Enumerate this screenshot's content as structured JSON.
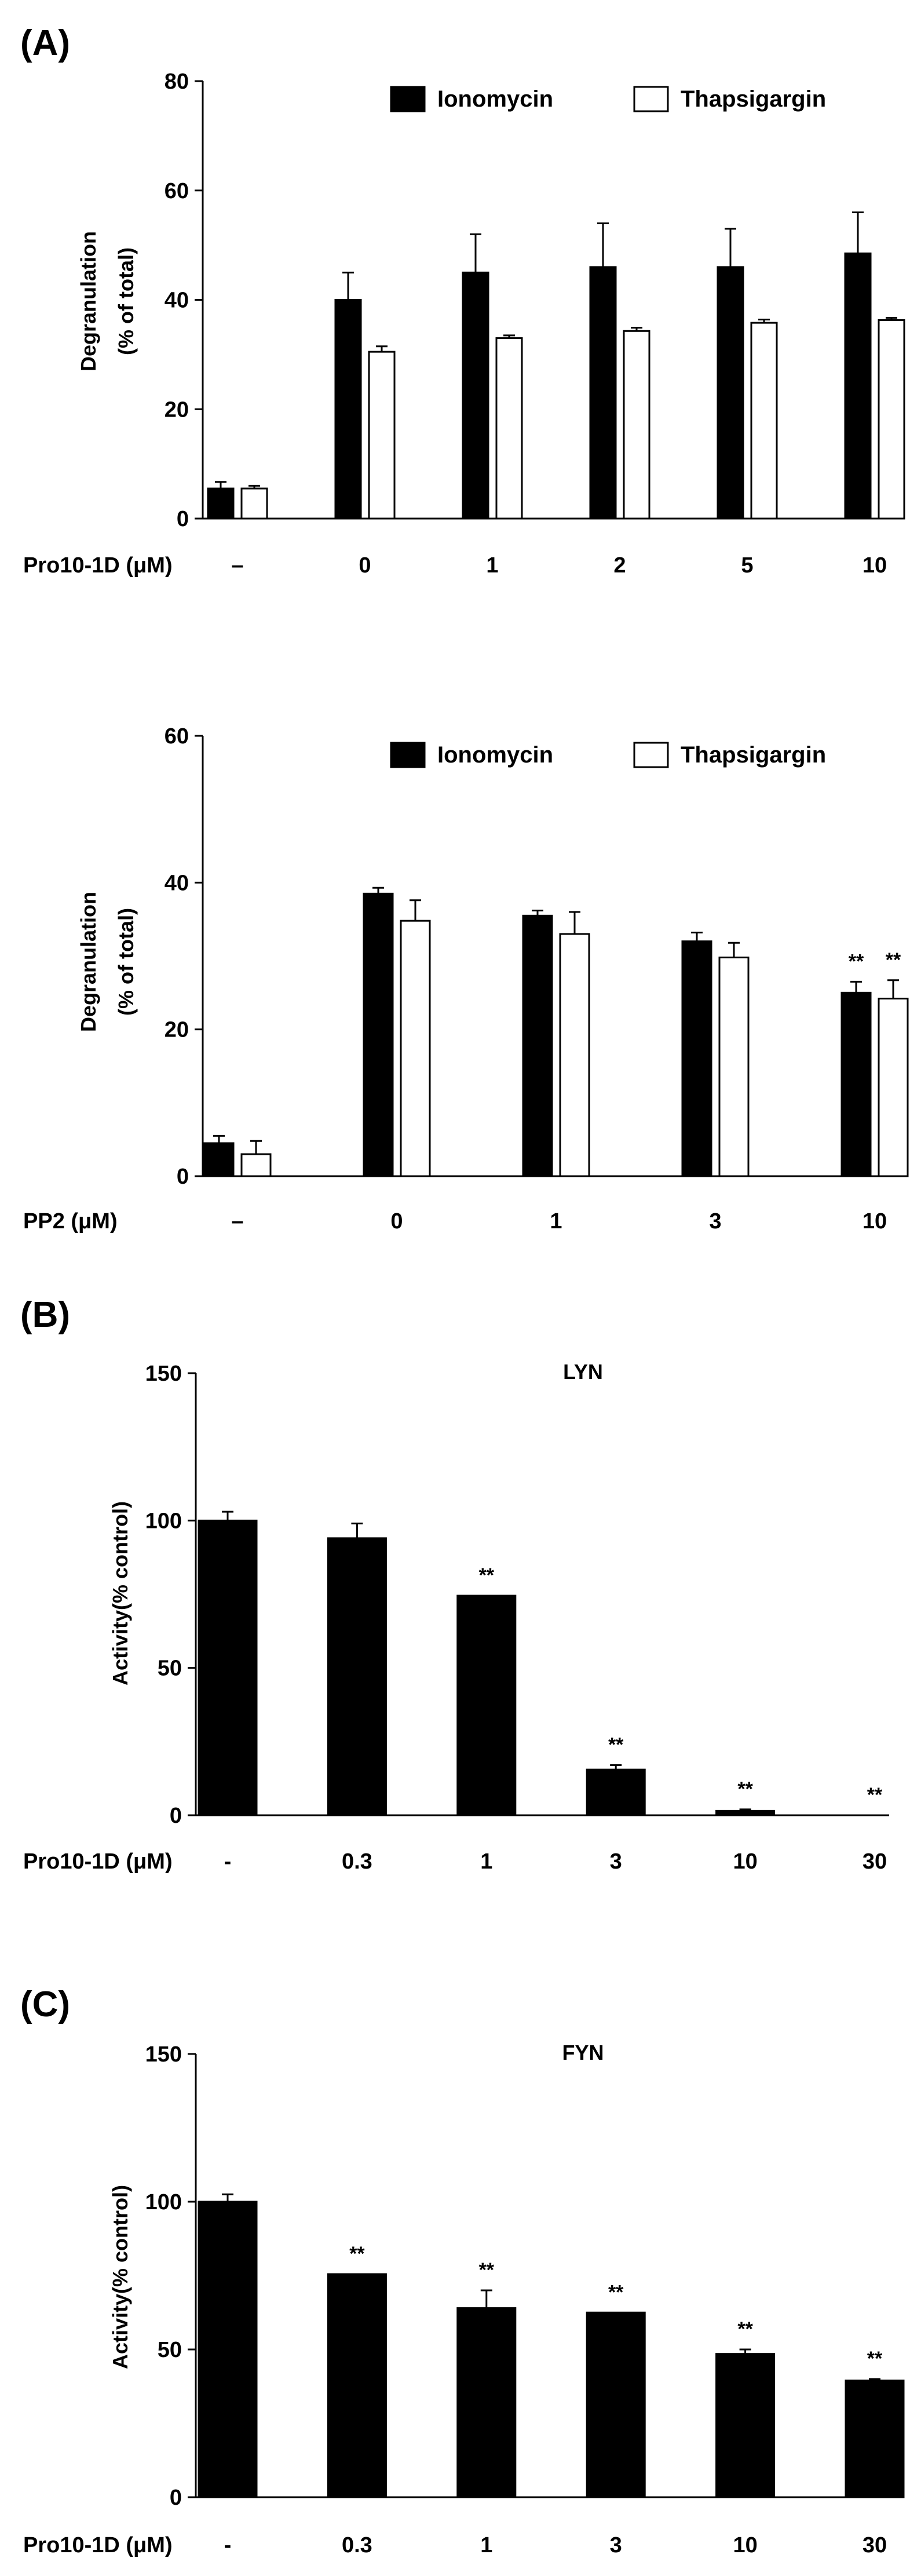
{
  "figure": {
    "panel_a": "(A)",
    "panel_b": "(B)",
    "panel_c": "(C)"
  },
  "colors": {
    "ink": "#000000",
    "empty": "#ffffff"
  },
  "chart_data": [
    {
      "type": "bar",
      "title": "",
      "ylabel": [
        "Degranulation",
        "(% of total)"
      ],
      "xvar": "Pro10-1D (μM)",
      "categories": [
        "–",
        "0",
        "1",
        "2",
        "5",
        "10"
      ],
      "ylim": [
        0,
        80
      ],
      "yticks": [
        0,
        20,
        40,
        60,
        80
      ],
      "legend_position": "top-right",
      "series": [
        {
          "name": "Ionomycin",
          "fill": "black",
          "values": [
            5.5,
            40,
            45,
            46,
            46,
            48.5
          ],
          "errors": [
            1.2,
            5,
            7,
            8,
            7,
            7.5
          ],
          "sig": [
            "",
            "",
            "",
            "",
            "",
            ""
          ]
        },
        {
          "name": "Thapsigargin",
          "fill": "white",
          "values": [
            5.5,
            30.5,
            33,
            34.3,
            35.8,
            36.3
          ],
          "errors": [
            0.5,
            1,
            0.5,
            0.6,
            0.6,
            0.4
          ],
          "sig": [
            "",
            "",
            "",
            "",
            "",
            ""
          ]
        }
      ]
    },
    {
      "type": "bar",
      "title": "",
      "ylabel": [
        "Degranulation",
        "(% of total)"
      ],
      "xvar": "PP2 (μM)",
      "categories": [
        "–",
        "0",
        "1",
        "3",
        "10"
      ],
      "ylim": [
        0,
        60
      ],
      "yticks": [
        0,
        20,
        40,
        60
      ],
      "legend_position": "top-right",
      "series": [
        {
          "name": "Ionomycin",
          "fill": "black",
          "values": [
            4.5,
            38.5,
            35.5,
            32,
            25
          ],
          "errors": [
            1,
            0.8,
            0.7,
            1.2,
            1.5
          ],
          "sig": [
            "",
            "",
            "",
            "",
            "**"
          ]
        },
        {
          "name": "Thapsigargin",
          "fill": "white",
          "values": [
            3,
            34.8,
            33,
            29.8,
            24.2
          ],
          "errors": [
            1.8,
            2.8,
            3,
            2,
            2.5
          ],
          "sig": [
            "",
            "",
            "",
            "",
            "**"
          ]
        }
      ]
    },
    {
      "type": "bar",
      "title": "LYN",
      "ylabel": [
        "Activity(% control)"
      ],
      "xvar": "Pro10-1D (μM)",
      "categories": [
        "-",
        "0.3",
        "1",
        "3",
        "10",
        "30"
      ],
      "ylim": [
        0,
        150
      ],
      "yticks": [
        0,
        50,
        100,
        150
      ],
      "series": [
        {
          "name": "LYN",
          "fill": "black",
          "values": [
            100,
            94,
            74.5,
            15.5,
            1.5,
            0
          ],
          "errors": [
            3,
            5,
            0,
            1.5,
            0.5,
            0
          ],
          "sig": [
            "",
            "",
            "**",
            "**",
            "**",
            "**"
          ]
        }
      ]
    },
    {
      "type": "bar",
      "title": "FYN",
      "ylabel": [
        "Activity(% control)"
      ],
      "xvar": "Pro10-1D (μM)",
      "categories": [
        "-",
        "0.3",
        "1",
        "3",
        "10",
        "30"
      ],
      "ylim": [
        0,
        150
      ],
      "yticks": [
        0,
        50,
        100,
        150
      ],
      "series": [
        {
          "name": "FYN",
          "fill": "black",
          "values": [
            100,
            75.5,
            64,
            62.5,
            48.5,
            39.5
          ],
          "errors": [
            2.5,
            0,
            6,
            0,
            1.5,
            0.5
          ],
          "sig": [
            "",
            "**",
            "**",
            "**",
            "**",
            "**"
          ]
        }
      ]
    }
  ]
}
